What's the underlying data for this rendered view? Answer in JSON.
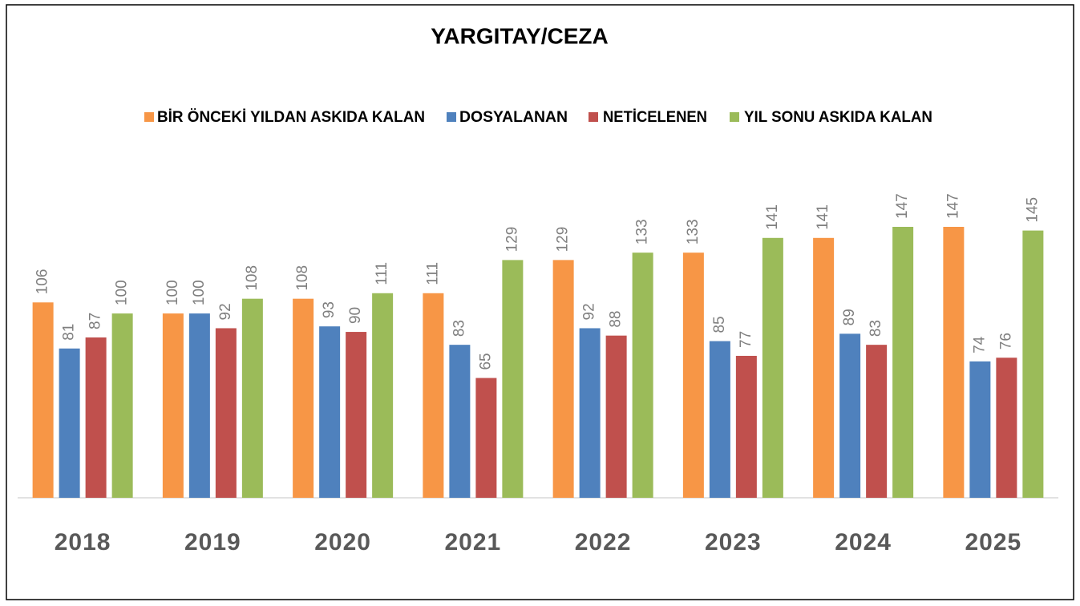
{
  "chart_data": {
    "type": "bar",
    "title": "YARGITAY/CEZA",
    "categories": [
      "2018",
      "2019",
      "2020",
      "2021",
      "2022",
      "2023",
      "2024",
      "2025"
    ],
    "legend": "top",
    "series": [
      {
        "name": "BİR ÖNCEKİ YILDAN ASKIDA KALAN",
        "color": "#f79646",
        "values": [
          106,
          100,
          108,
          111,
          129,
          133,
          141,
          147
        ]
      },
      {
        "name": "DOSYALANAN",
        "color": "#4f81bd",
        "values": [
          81,
          100,
          93,
          83,
          92,
          85,
          89,
          74
        ]
      },
      {
        "name": "NETİCELENEN",
        "color": "#c0504d",
        "values": [
          87,
          92,
          90,
          65,
          88,
          77,
          83,
          76
        ]
      },
      {
        "name": "YIL SONU ASKIDA KALAN",
        "color": "#9bbb59",
        "values": [
          100,
          108,
          111,
          129,
          133,
          141,
          147,
          145
        ]
      }
    ]
  }
}
